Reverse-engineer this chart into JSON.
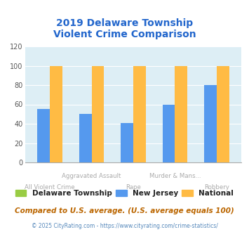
{
  "title": "2019 Delaware Township\nViolent Crime Comparison",
  "categories": [
    "All Violent Crime",
    "Aggravated Assault",
    "Rape",
    "Murder & Mans...",
    "Robbery"
  ],
  "cat_row": [
    1,
    0,
    1,
    0,
    1
  ],
  "series": {
    "Delaware Township": [
      0,
      0,
      0,
      0,
      0
    ],
    "New Jersey": [
      55,
      50,
      41,
      60,
      80
    ],
    "National": [
      100,
      100,
      100,
      100,
      100
    ]
  },
  "colors": {
    "Delaware Township": "#99cc44",
    "New Jersey": "#5599ee",
    "National": "#ffbb44"
  },
  "ylim": [
    0,
    120
  ],
  "yticks": [
    0,
    20,
    40,
    60,
    80,
    100,
    120
  ],
  "title_color": "#2266cc",
  "title_fontsize": 10,
  "chart_bg_color": "#ddeef5",
  "fig_bg_color": "#ffffff",
  "footer_text": "Compared to U.S. average. (U.S. average equals 100)",
  "copyright_text": "© 2025 CityRating.com - https://www.cityrating.com/crime-statistics/",
  "legend_labels": [
    "Delaware Township",
    "New Jersey",
    "National"
  ],
  "bar_width": 0.3
}
